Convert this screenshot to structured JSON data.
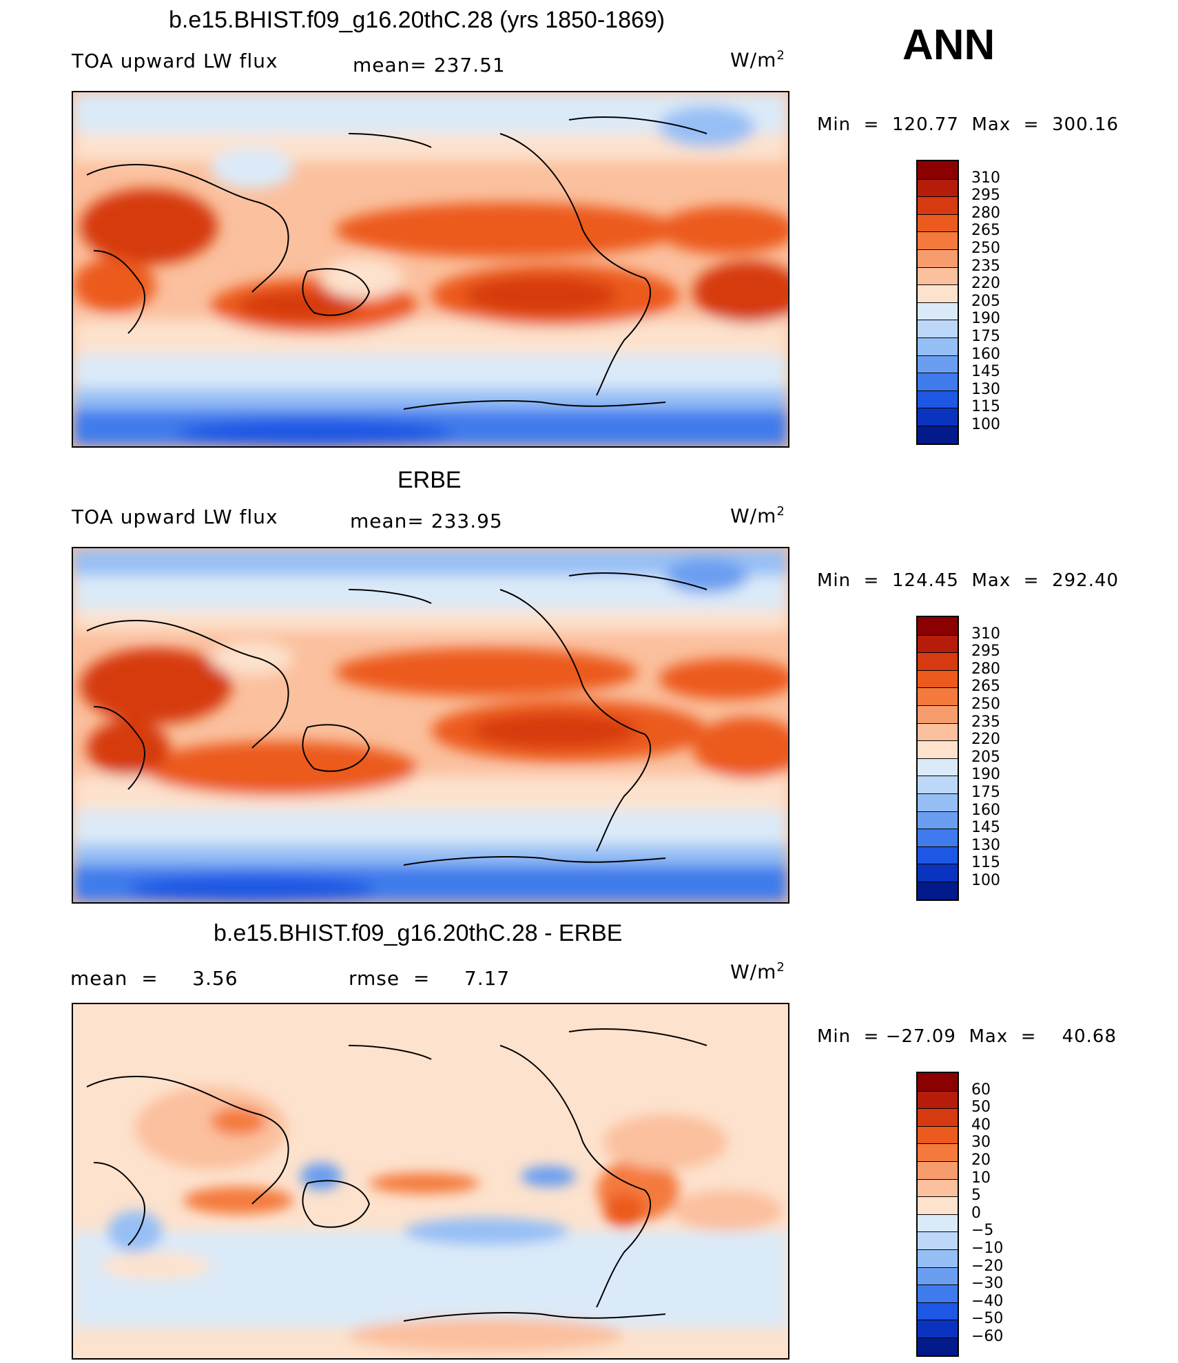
{
  "annotation": "ANN",
  "units": "W/m",
  "units_sup": "2",
  "panels": [
    {
      "title": "b.e15.BHIST.f09_g16.20thC.28 (yrs 1850-1869)",
      "left_label": "TOA upward LW flux",
      "mid_label": "mean= 237.51",
      "minmax": "Min  =  120.77  Max  =  300.16"
    },
    {
      "title": "ERBE",
      "left_label": "TOA upward LW flux",
      "mid_label": "mean= 233.95",
      "minmax": "Min  =  124.45  Max  =  292.40"
    },
    {
      "title": "b.e15.BHIST.f09_g16.20thC.28 - ERBE",
      "left_label": "mean  =     3.56",
      "mid_label": "rmse  =     7.17",
      "minmax": "Min  = −27.09  Max  =    40.68"
    }
  ],
  "colorbars": {
    "abs_labels": [
      "310",
      "295",
      "280",
      "265",
      "250",
      "235",
      "220",
      "205",
      "190",
      "175",
      "160",
      "145",
      "130",
      "115",
      "100"
    ],
    "abs_colors": [
      "#8b0000",
      "#b51d0a",
      "#d63a10",
      "#ec5a1d",
      "#f47a3d",
      "#f79c6c",
      "#fbc09e",
      "#fde2cd",
      "#dbeaf8",
      "#bcd7f7",
      "#96bff5",
      "#6b9ef0",
      "#3f7bec",
      "#1d57e3",
      "#0a33c0",
      "#031a8a"
    ],
    "diff_labels": [
      "60",
      "50",
      "40",
      "30",
      "20",
      "10",
      "5",
      "0",
      "−5",
      "−10",
      "−20",
      "−30",
      "−40",
      "−50",
      "−60"
    ],
    "diff_colors": [
      "#8b0000",
      "#b51d0a",
      "#d63a10",
      "#ec5a1d",
      "#f47a3d",
      "#f79c6c",
      "#fbc09e",
      "#fde2cd",
      "#dbeaf8",
      "#bcd7f7",
      "#96bff5",
      "#6b9ef0",
      "#3f7bec",
      "#1d57e3",
      "#0a33c0",
      "#031a8a"
    ]
  }
}
